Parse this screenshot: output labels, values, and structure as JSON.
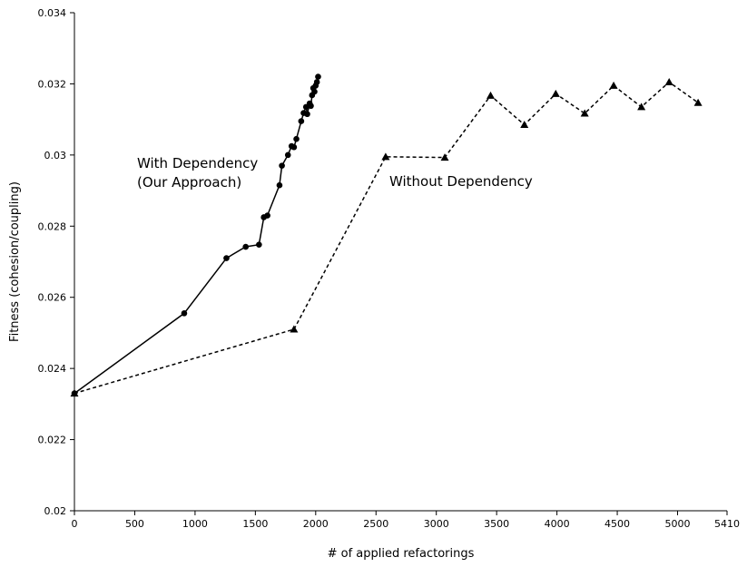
{
  "chart_data": {
    "type": "line",
    "title": "",
    "xlabel": "# of applied refactorings",
    "ylabel": "Fitness (cohesion/coupling)",
    "xlim": [
      0,
      5410
    ],
    "ylim": [
      0.02,
      0.034
    ],
    "x_ticks": [
      0,
      500,
      1000,
      1500,
      2000,
      2500,
      3000,
      3500,
      4000,
      4500,
      5000,
      5410
    ],
    "x_tick_labels": [
      "0",
      "500",
      "1000",
      "1500",
      "2000",
      "2500",
      "3000",
      "3500",
      "4000",
      "4500",
      "5000",
      "5410"
    ],
    "y_ticks": [
      0.02,
      0.022,
      0.024,
      0.026,
      0.028,
      0.03,
      0.032,
      0.034
    ],
    "y_tick_labels": [
      "0.02",
      "0.022",
      "0.024",
      "0.026",
      "0.028",
      "0.03",
      "0.032",
      "0.034"
    ],
    "grid": false,
    "series": [
      {
        "marker": "circle",
        "line": "solid",
        "points": [
          [
            0,
            0.0233
          ],
          [
            910,
            0.02555
          ],
          [
            1260,
            0.0271
          ],
          [
            1420,
            0.02742
          ],
          [
            1530,
            0.02748
          ],
          [
            1570,
            0.02825
          ],
          [
            1600,
            0.0283
          ],
          [
            1700,
            0.02915
          ],
          [
            1720,
            0.0297
          ],
          [
            1770,
            0.03
          ],
          [
            1800,
            0.03025
          ],
          [
            1820,
            0.03022
          ],
          [
            1840,
            0.03045
          ],
          [
            1880,
            0.03095
          ],
          [
            1900,
            0.03118
          ],
          [
            1920,
            0.03135
          ],
          [
            1930,
            0.03115
          ],
          [
            1950,
            0.03145
          ],
          [
            1960,
            0.03138
          ],
          [
            1970,
            0.03168
          ],
          [
            1980,
            0.03188
          ],
          [
            1990,
            0.03178
          ],
          [
            2000,
            0.03195
          ],
          [
            2010,
            0.03205
          ],
          [
            2020,
            0.0322
          ]
        ]
      },
      {
        "marker": "triangle",
        "line": "dashed",
        "points": [
          [
            0,
            0.0233
          ],
          [
            1820,
            0.0251
          ],
          [
            2580,
            0.02995
          ],
          [
            3070,
            0.02993
          ],
          [
            3450,
            0.03167
          ],
          [
            3730,
            0.03085
          ],
          [
            3990,
            0.03172
          ],
          [
            4230,
            0.03117
          ],
          [
            4470,
            0.03195
          ],
          [
            4700,
            0.03135
          ],
          [
            4930,
            0.03205
          ],
          [
            5170,
            0.03147
          ]
        ]
      }
    ],
    "annotations": [
      {
        "lines": [
          "With Dependency",
          "(Our Approach)"
        ]
      },
      {
        "lines": [
          "Without Dependency"
        ]
      }
    ]
  }
}
